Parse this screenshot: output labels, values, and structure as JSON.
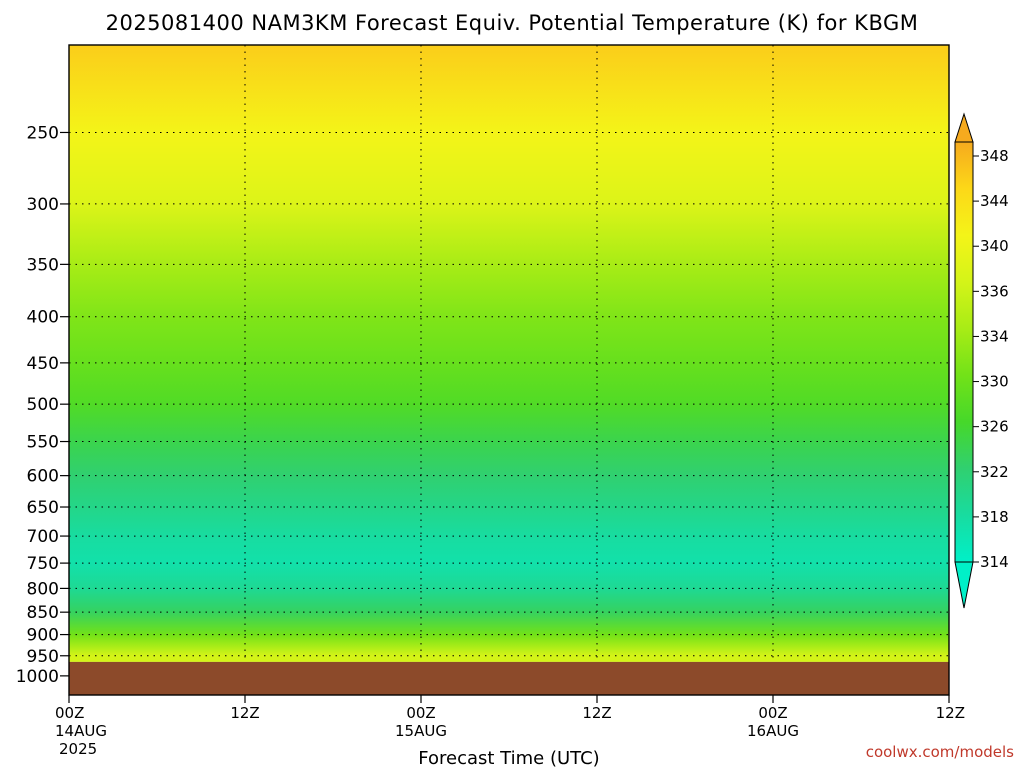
{
  "chart_data": {
    "type": "heatmap",
    "title": "2025081400 NAM3KM Forecast Equiv. Potential Temperature (K) for KBGM",
    "xlabel": "Forecast Time (UTC)",
    "ylabel": "",
    "x_ticks": [
      {
        "time_h": 0,
        "label": "00Z",
        "date": "14AUG",
        "year": "2025"
      },
      {
        "time_h": 12,
        "label": "12Z",
        "date": "",
        "year": ""
      },
      {
        "time_h": 24,
        "label": "00Z",
        "date": "15AUG",
        "year": ""
      },
      {
        "time_h": 36,
        "label": "12Z",
        "date": "",
        "year": ""
      },
      {
        "time_h": 48,
        "label": "00Z",
        "date": "16AUG",
        "year": ""
      },
      {
        "time_h": 60,
        "label": "12Z",
        "date": "",
        "year": ""
      }
    ],
    "xlim": [
      0,
      60
    ],
    "y_ticks": [
      250,
      300,
      350,
      400,
      450,
      500,
      550,
      600,
      650,
      700,
      750,
      800,
      850,
      900,
      950,
      1000
    ],
    "ylim": [
      200,
      1050
    ],
    "y_scale": "log",
    "colorbar": {
      "ticks": [
        348,
        344,
        340,
        336,
        334,
        330,
        326,
        322,
        318,
        314
      ],
      "stops": [
        {
          "value": 314,
          "color": "#00f0c8"
        },
        {
          "value": 318,
          "color": "#18dca0"
        },
        {
          "value": 322,
          "color": "#30d070"
        },
        {
          "value": 326,
          "color": "#46d82a"
        },
        {
          "value": 330,
          "color": "#72e218"
        },
        {
          "value": 334,
          "color": "#a8ec16"
        },
        {
          "value": 336,
          "color": "#d4f418"
        },
        {
          "value": 340,
          "color": "#f4f418"
        },
        {
          "value": 344,
          "color": "#fcd818"
        },
        {
          "value": 348,
          "color": "#f6aa1e"
        }
      ]
    },
    "profile": [
      {
        "pressure": 200,
        "theta_e": 345
      },
      {
        "pressure": 250,
        "theta_e": 340
      },
      {
        "pressure": 300,
        "theta_e": 337
      },
      {
        "pressure": 350,
        "theta_e": 334
      },
      {
        "pressure": 400,
        "theta_e": 331
      },
      {
        "pressure": 450,
        "theta_e": 329
      },
      {
        "pressure": 500,
        "theta_e": 327
      },
      {
        "pressure": 550,
        "theta_e": 324
      },
      {
        "pressure": 600,
        "theta_e": 322
      },
      {
        "pressure": 650,
        "theta_e": 320
      },
      {
        "pressure": 700,
        "theta_e": 318
      },
      {
        "pressure": 750,
        "theta_e": 317
      },
      {
        "pressure": 800,
        "theta_e": 319
      },
      {
        "pressure": 850,
        "theta_e": 323
      },
      {
        "pressure": 900,
        "theta_e": 330
      },
      {
        "pressure": 950,
        "theta_e": 336
      }
    ],
    "surface_pressure": 965,
    "contour_interval": 2,
    "grid": true
  },
  "watermark": "coolwx.com/models",
  "colors": {
    "ground": "#8c4a2a",
    "background": "#ffffff",
    "grid": "#000000",
    "watermark": "#c0392b"
  }
}
